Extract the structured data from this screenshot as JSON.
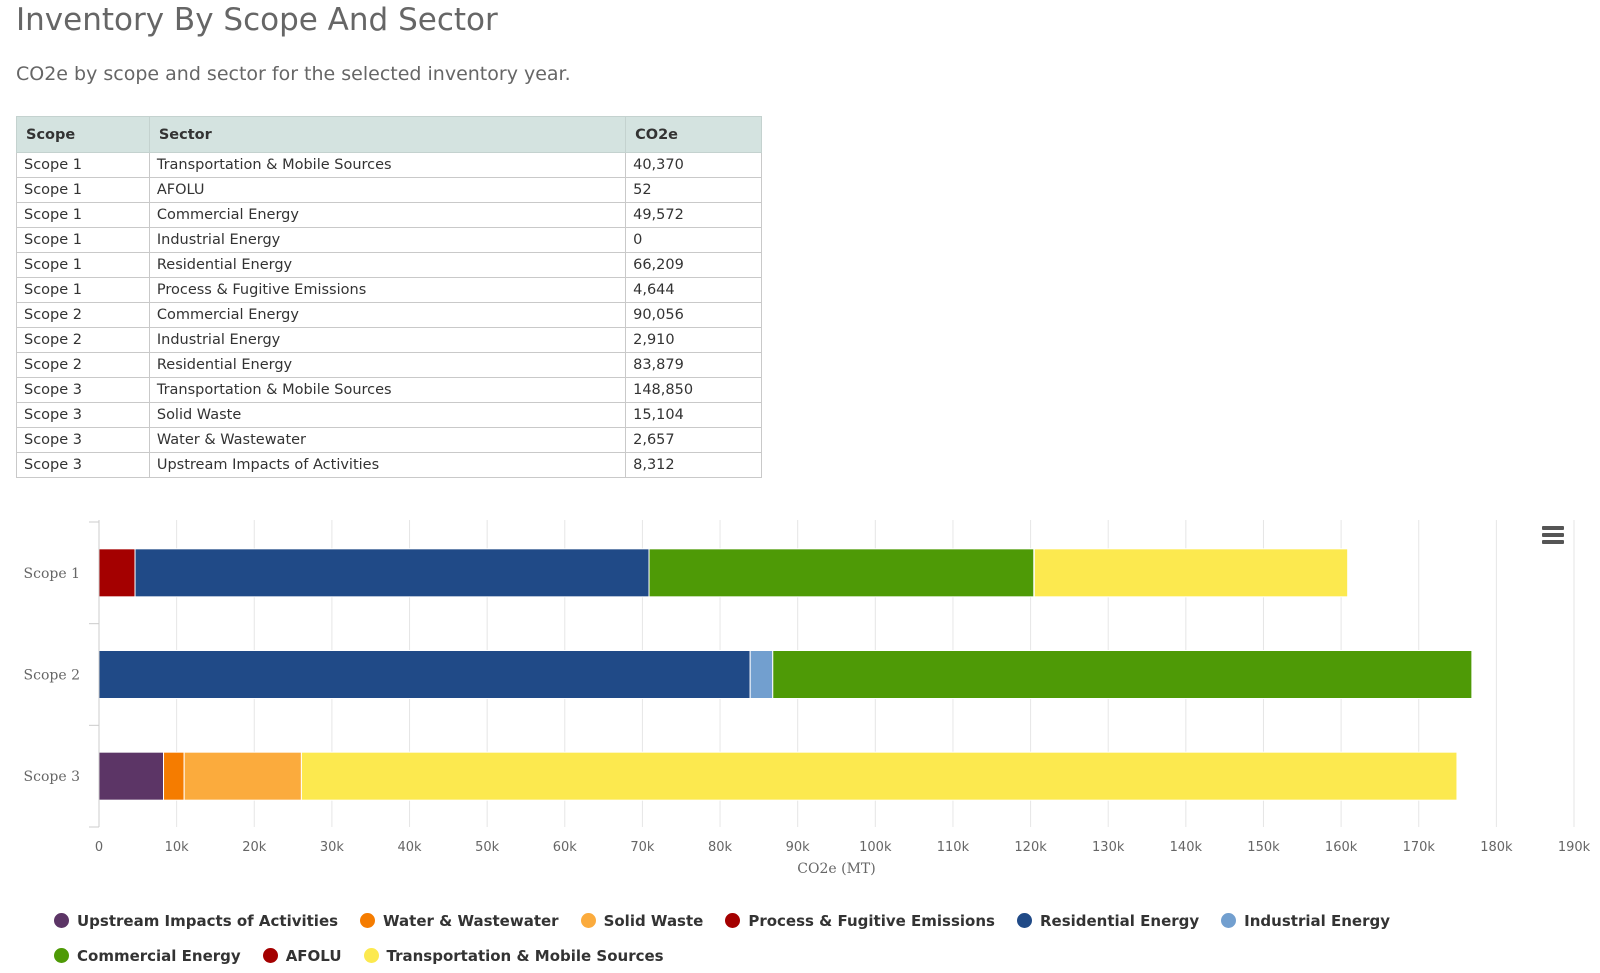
{
  "page": {
    "title": "Inventory By Scope And Sector",
    "subtitle": "CO2e by scope and sector for the selected inventory year."
  },
  "table": {
    "headers": [
      "Scope",
      "Sector",
      "CO2e"
    ],
    "rows": [
      [
        "Scope 1",
        "Transportation & Mobile Sources",
        "40,370"
      ],
      [
        "Scope 1",
        "AFOLU",
        "52"
      ],
      [
        "Scope 1",
        "Commercial Energy",
        "49,572"
      ],
      [
        "Scope 1",
        "Industrial Energy",
        "0"
      ],
      [
        "Scope 1",
        "Residential Energy",
        "66,209"
      ],
      [
        "Scope 1",
        "Process & Fugitive Emissions",
        "4,644"
      ],
      [
        "Scope 2",
        "Commercial Energy",
        "90,056"
      ],
      [
        "Scope 2",
        "Industrial Energy",
        "2,910"
      ],
      [
        "Scope 2",
        "Residential Energy",
        "83,879"
      ],
      [
        "Scope 3",
        "Transportation & Mobile Sources",
        "148,850"
      ],
      [
        "Scope 3",
        "Solid Waste",
        "15,104"
      ],
      [
        "Scope 3",
        "Water & Wastewater",
        "2,657"
      ],
      [
        "Scope 3",
        "Upstream Impacts of Activities",
        "8,312"
      ]
    ]
  },
  "chart_menu": {
    "icon": "hamburger-menu-icon"
  },
  "chart_data": {
    "type": "bar",
    "orientation": "horizontal",
    "stacked": true,
    "categories": [
      "Scope 1",
      "Scope 2",
      "Scope 3"
    ],
    "xlabel": "CO2e (MT)",
    "xlim": [
      0,
      190000
    ],
    "x_ticks": [
      "0",
      "10k",
      "20k",
      "30k",
      "40k",
      "50k",
      "60k",
      "70k",
      "80k",
      "90k",
      "100k",
      "110k",
      "120k",
      "130k",
      "140k",
      "150k",
      "160k",
      "170k",
      "180k",
      "190k"
    ],
    "grid": true,
    "legend_position": "bottom",
    "series": [
      {
        "name": "Upstream Impacts of Activities",
        "color": "#5c3566",
        "values": [
          0,
          0,
          8312
        ]
      },
      {
        "name": "Water & Wastewater",
        "color": "#f57c00",
        "values": [
          0,
          0,
          2657
        ]
      },
      {
        "name": "Solid Waste",
        "color": "#fbab3d",
        "values": [
          0,
          0,
          15104
        ]
      },
      {
        "name": "Process & Fugitive Emissions",
        "color": "#a40000",
        "values": [
          4644,
          0,
          0
        ]
      },
      {
        "name": "Residential Energy",
        "color": "#204a87",
        "values": [
          66209,
          83879,
          0
        ]
      },
      {
        "name": "Industrial Energy",
        "color": "#729fcf",
        "values": [
          0,
          2910,
          0
        ]
      },
      {
        "name": "Commercial Energy",
        "color": "#4e9a06",
        "values": [
          49572,
          90056,
          0
        ]
      },
      {
        "name": "AFOLU",
        "color": "#a40000",
        "values": [
          52,
          0,
          0
        ]
      },
      {
        "name": "Transportation & Mobile Sources",
        "color": "#fce94f",
        "values": [
          40370,
          0,
          148850
        ]
      }
    ]
  }
}
